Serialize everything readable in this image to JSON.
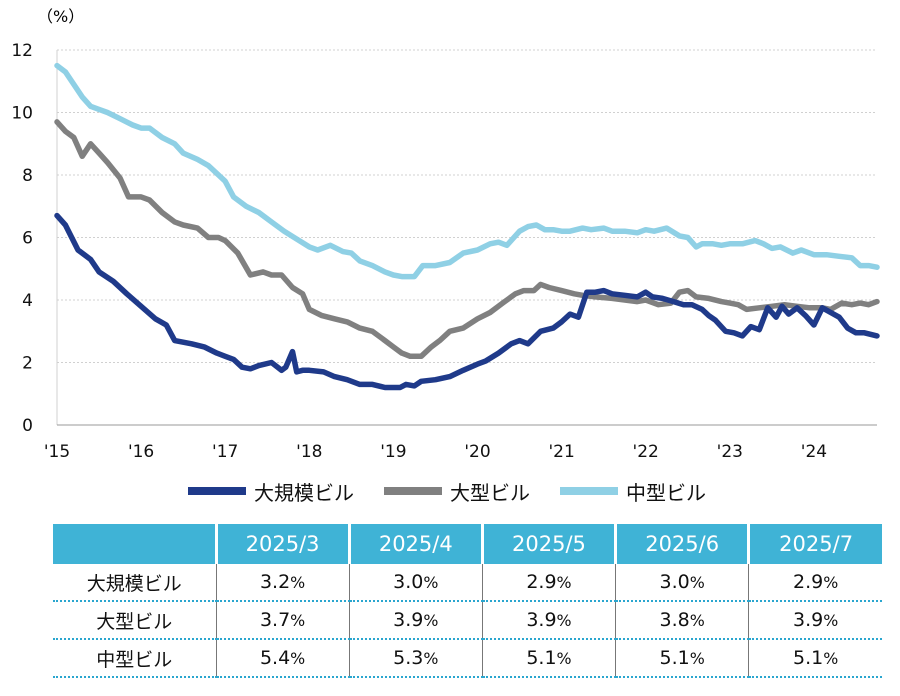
{
  "chart_data": {
    "type": "line",
    "unit_label": "（%）",
    "ylim": [
      0,
      12
    ],
    "yticks": [
      0,
      2,
      4,
      6,
      8,
      10,
      12
    ],
    "xlim": [
      2015,
      2024.75
    ],
    "xticks": [
      {
        "x": 2015,
        "label": "'15"
      },
      {
        "x": 2016,
        "label": "'16"
      },
      {
        "x": 2017,
        "label": "'17"
      },
      {
        "x": 2018,
        "label": "'18"
      },
      {
        "x": 2019,
        "label": "'19"
      },
      {
        "x": 2020,
        "label": "'20"
      },
      {
        "x": 2021,
        "label": "'21"
      },
      {
        "x": 2022,
        "label": "'22"
      },
      {
        "x": 2023,
        "label": "'23"
      },
      {
        "x": 2024,
        "label": "'24"
      }
    ],
    "grid": true,
    "legend_position": "bottom",
    "series": [
      {
        "name": "大規模ビル",
        "color": "#1f3a8a",
        "points": [
          [
            2015,
            6.7
          ],
          [
            2015.1,
            6.4
          ],
          [
            2015.25,
            5.6
          ],
          [
            2015.4,
            5.3
          ],
          [
            2015.5,
            4.9
          ],
          [
            2015.67,
            4.6
          ],
          [
            2015.83,
            4.2
          ],
          [
            2016,
            3.8
          ],
          [
            2016.17,
            3.4
          ],
          [
            2016.3,
            3.2
          ],
          [
            2016.4,
            2.7
          ],
          [
            2016.6,
            2.6
          ],
          [
            2016.75,
            2.5
          ],
          [
            2016.9,
            2.3
          ],
          [
            2017,
            2.2
          ],
          [
            2017.1,
            2.1
          ],
          [
            2017.2,
            1.85
          ],
          [
            2017.3,
            1.8
          ],
          [
            2017.4,
            1.9
          ],
          [
            2017.55,
            2.0
          ],
          [
            2017.67,
            1.75
          ],
          [
            2017.72,
            1.85
          ],
          [
            2017.8,
            2.35
          ],
          [
            2017.85,
            1.7
          ],
          [
            2017.92,
            1.75
          ],
          [
            2018,
            1.75
          ],
          [
            2018.17,
            1.7
          ],
          [
            2018.3,
            1.55
          ],
          [
            2018.45,
            1.45
          ],
          [
            2018.6,
            1.3
          ],
          [
            2018.75,
            1.3
          ],
          [
            2018.9,
            1.2
          ],
          [
            2019,
            1.2
          ],
          [
            2019.08,
            1.2
          ],
          [
            2019.15,
            1.3
          ],
          [
            2019.25,
            1.25
          ],
          [
            2019.33,
            1.4
          ],
          [
            2019.5,
            1.45
          ],
          [
            2019.67,
            1.55
          ],
          [
            2019.83,
            1.75
          ],
          [
            2020,
            1.95
          ],
          [
            2020.1,
            2.05
          ],
          [
            2020.25,
            2.3
          ],
          [
            2020.4,
            2.6
          ],
          [
            2020.5,
            2.7
          ],
          [
            2020.6,
            2.6
          ],
          [
            2020.75,
            3.0
          ],
          [
            2020.9,
            3.1
          ],
          [
            2021,
            3.3
          ],
          [
            2021.1,
            3.55
          ],
          [
            2021.2,
            3.45
          ],
          [
            2021.3,
            4.25
          ],
          [
            2021.4,
            4.25
          ],
          [
            2021.5,
            4.3
          ],
          [
            2021.6,
            4.2
          ],
          [
            2021.75,
            4.15
          ],
          [
            2021.9,
            4.1
          ],
          [
            2022,
            4.25
          ],
          [
            2022.08,
            4.1
          ],
          [
            2022.2,
            4.05
          ],
          [
            2022.33,
            3.95
          ],
          [
            2022.45,
            3.85
          ],
          [
            2022.55,
            3.85
          ],
          [
            2022.67,
            3.7
          ],
          [
            2022.75,
            3.5
          ],
          [
            2022.83,
            3.35
          ],
          [
            2022.95,
            3.0
          ],
          [
            2023.05,
            2.95
          ],
          [
            2023.15,
            2.85
          ],
          [
            2023.25,
            3.15
          ],
          [
            2023.35,
            3.05
          ],
          [
            2023.45,
            3.75
          ],
          [
            2023.55,
            3.45
          ],
          [
            2023.62,
            3.8
          ],
          [
            2023.7,
            3.55
          ],
          [
            2023.8,
            3.75
          ],
          [
            2023.9,
            3.5
          ],
          [
            2024,
            3.2
          ],
          [
            2024.1,
            3.75
          ],
          [
            2024.2,
            3.6
          ],
          [
            2024.3,
            3.45
          ],
          [
            2024.4,
            3.1
          ],
          [
            2024.5,
            2.95
          ],
          [
            2024.6,
            2.95
          ],
          [
            2024.75,
            2.85
          ]
        ]
      },
      {
        "name": "大型ビル",
        "color": "#808080",
        "points": [
          [
            2015,
            9.7
          ],
          [
            2015.1,
            9.4
          ],
          [
            2015.2,
            9.2
          ],
          [
            2015.3,
            8.6
          ],
          [
            2015.4,
            9.0
          ],
          [
            2015.5,
            8.7
          ],
          [
            2015.6,
            8.4
          ],
          [
            2015.75,
            7.9
          ],
          [
            2015.85,
            7.3
          ],
          [
            2016,
            7.3
          ],
          [
            2016.1,
            7.2
          ],
          [
            2016.25,
            6.8
          ],
          [
            2016.4,
            6.5
          ],
          [
            2016.5,
            6.4
          ],
          [
            2016.67,
            6.3
          ],
          [
            2016.8,
            6.0
          ],
          [
            2016.92,
            6.0
          ],
          [
            2017,
            5.9
          ],
          [
            2017.15,
            5.5
          ],
          [
            2017.3,
            4.8
          ],
          [
            2017.45,
            4.9
          ],
          [
            2017.55,
            4.8
          ],
          [
            2017.67,
            4.8
          ],
          [
            2017.8,
            4.4
          ],
          [
            2017.92,
            4.2
          ],
          [
            2018,
            3.7
          ],
          [
            2018.15,
            3.5
          ],
          [
            2018.3,
            3.4
          ],
          [
            2018.45,
            3.3
          ],
          [
            2018.6,
            3.1
          ],
          [
            2018.75,
            3.0
          ],
          [
            2018.9,
            2.7
          ],
          [
            2019,
            2.5
          ],
          [
            2019.1,
            2.3
          ],
          [
            2019.2,
            2.2
          ],
          [
            2019.33,
            2.2
          ],
          [
            2019.45,
            2.5
          ],
          [
            2019.55,
            2.7
          ],
          [
            2019.67,
            3.0
          ],
          [
            2019.83,
            3.1
          ],
          [
            2020,
            3.4
          ],
          [
            2020.15,
            3.6
          ],
          [
            2020.3,
            3.9
          ],
          [
            2020.45,
            4.2
          ],
          [
            2020.55,
            4.3
          ],
          [
            2020.67,
            4.3
          ],
          [
            2020.75,
            4.5
          ],
          [
            2020.85,
            4.4
          ],
          [
            2021,
            4.3
          ],
          [
            2021.15,
            4.2
          ],
          [
            2021.25,
            4.15
          ],
          [
            2021.4,
            4.1
          ],
          [
            2021.6,
            4.05
          ],
          [
            2021.75,
            4.0
          ],
          [
            2021.9,
            3.95
          ],
          [
            2022,
            4.0
          ],
          [
            2022.15,
            3.85
          ],
          [
            2022.3,
            3.9
          ],
          [
            2022.4,
            4.25
          ],
          [
            2022.5,
            4.3
          ],
          [
            2022.6,
            4.1
          ],
          [
            2022.75,
            4.05
          ],
          [
            2022.9,
            3.95
          ],
          [
            2023,
            3.9
          ],
          [
            2023.1,
            3.85
          ],
          [
            2023.2,
            3.7
          ],
          [
            2023.35,
            3.75
          ],
          [
            2023.5,
            3.8
          ],
          [
            2023.65,
            3.85
          ],
          [
            2023.8,
            3.8
          ],
          [
            2023.95,
            3.75
          ],
          [
            2024.1,
            3.75
          ],
          [
            2024.2,
            3.7
          ],
          [
            2024.33,
            3.9
          ],
          [
            2024.45,
            3.85
          ],
          [
            2024.55,
            3.9
          ],
          [
            2024.65,
            3.85
          ],
          [
            2024.75,
            3.95
          ]
        ]
      },
      {
        "name": "中型ビル",
        "color": "#8fd0e5",
        "points": [
          [
            2015,
            11.5
          ],
          [
            2015.1,
            11.3
          ],
          [
            2015.2,
            10.9
          ],
          [
            2015.3,
            10.5
          ],
          [
            2015.4,
            10.2
          ],
          [
            2015.5,
            10.1
          ],
          [
            2015.6,
            10.0
          ],
          [
            2015.75,
            9.8
          ],
          [
            2015.9,
            9.6
          ],
          [
            2016,
            9.5
          ],
          [
            2016.1,
            9.5
          ],
          [
            2016.25,
            9.2
          ],
          [
            2016.4,
            9.0
          ],
          [
            2016.5,
            8.7
          ],
          [
            2016.67,
            8.5
          ],
          [
            2016.8,
            8.3
          ],
          [
            2016.92,
            8.0
          ],
          [
            2017,
            7.8
          ],
          [
            2017.1,
            7.3
          ],
          [
            2017.25,
            7.0
          ],
          [
            2017.4,
            6.8
          ],
          [
            2017.55,
            6.5
          ],
          [
            2017.7,
            6.2
          ],
          [
            2017.85,
            5.95
          ],
          [
            2018,
            5.7
          ],
          [
            2018.1,
            5.6
          ],
          [
            2018.25,
            5.75
          ],
          [
            2018.4,
            5.55
          ],
          [
            2018.5,
            5.5
          ],
          [
            2018.6,
            5.25
          ],
          [
            2018.75,
            5.1
          ],
          [
            2018.9,
            4.9
          ],
          [
            2019,
            4.8
          ],
          [
            2019.1,
            4.75
          ],
          [
            2019.25,
            4.75
          ],
          [
            2019.35,
            5.1
          ],
          [
            2019.5,
            5.1
          ],
          [
            2019.67,
            5.2
          ],
          [
            2019.83,
            5.5
          ],
          [
            2020,
            5.6
          ],
          [
            2020.15,
            5.8
          ],
          [
            2020.25,
            5.85
          ],
          [
            2020.35,
            5.75
          ],
          [
            2020.5,
            6.2
          ],
          [
            2020.6,
            6.35
          ],
          [
            2020.7,
            6.4
          ],
          [
            2020.8,
            6.25
          ],
          [
            2020.9,
            6.25
          ],
          [
            2021,
            6.2
          ],
          [
            2021.1,
            6.2
          ],
          [
            2021.25,
            6.3
          ],
          [
            2021.35,
            6.25
          ],
          [
            2021.5,
            6.3
          ],
          [
            2021.6,
            6.2
          ],
          [
            2021.75,
            6.2
          ],
          [
            2021.9,
            6.15
          ],
          [
            2022,
            6.25
          ],
          [
            2022.1,
            6.2
          ],
          [
            2022.25,
            6.3
          ],
          [
            2022.4,
            6.05
          ],
          [
            2022.5,
            6.0
          ],
          [
            2022.6,
            5.7
          ],
          [
            2022.67,
            5.8
          ],
          [
            2022.8,
            5.8
          ],
          [
            2022.9,
            5.75
          ],
          [
            2023,
            5.8
          ],
          [
            2023.15,
            5.8
          ],
          [
            2023.3,
            5.9
          ],
          [
            2023.4,
            5.8
          ],
          [
            2023.5,
            5.65
          ],
          [
            2023.6,
            5.7
          ],
          [
            2023.75,
            5.5
          ],
          [
            2023.85,
            5.6
          ],
          [
            2024,
            5.45
          ],
          [
            2024.15,
            5.45
          ],
          [
            2024.3,
            5.4
          ],
          [
            2024.45,
            5.35
          ],
          [
            2024.55,
            5.1
          ],
          [
            2024.65,
            5.1
          ],
          [
            2024.75,
            5.05
          ]
        ]
      }
    ]
  },
  "table": {
    "headers": [
      "2025/3",
      "2025/4",
      "2025/5",
      "2025/6",
      "2025/7"
    ],
    "rows": [
      {
        "label": "大規模ビル",
        "values": [
          "3.2",
          "3.0",
          "2.9",
          "3.0",
          "2.9"
        ]
      },
      {
        "label": "大型ビル",
        "values": [
          "3.7",
          "3.9",
          "3.9",
          "3.8",
          "3.9"
        ]
      },
      {
        "label": "中型ビル",
        "values": [
          "5.4",
          "5.3",
          "5.1",
          "5.1",
          "5.1"
        ]
      }
    ],
    "unit": "%"
  }
}
